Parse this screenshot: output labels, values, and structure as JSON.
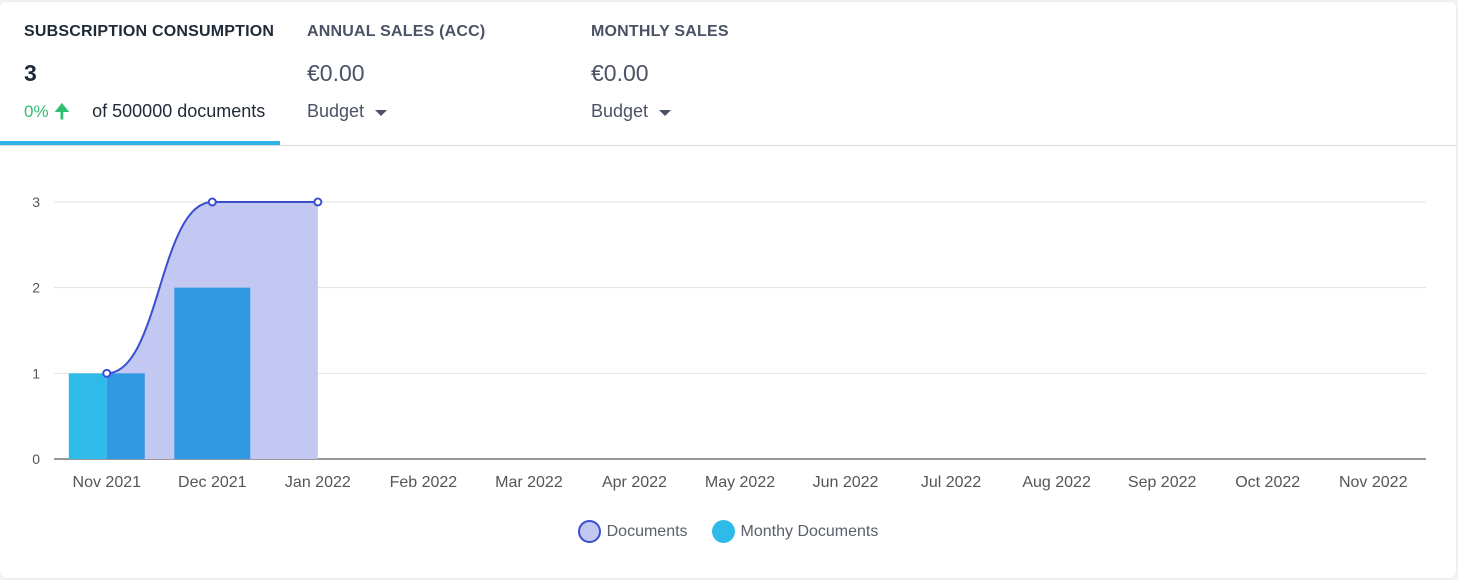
{
  "stats": {
    "consumption": {
      "title": "SUBSCRIPTION CONSUMPTION",
      "value": "3",
      "change_pct": "0%",
      "change_icon": "arrow-up-icon",
      "of_text": "of 500000 documents"
    },
    "annual": {
      "title": "ANNUAL SALES (ACC)",
      "value": "€0.00",
      "select": "Budget"
    },
    "monthly": {
      "title": "MONTHLY SALES",
      "value": "€0.00",
      "select": "Budget"
    }
  },
  "colors": {
    "accent": "#2eb4e6",
    "positive": "#2fbf71",
    "documents_line": "#3a4fd0",
    "documents_fill": "#c2c8f2",
    "monthly_bar_light": "#2fbbea",
    "monthly_bar_dark": "#3198e3"
  },
  "chart_data": {
    "type": "bar",
    "categories": [
      "Nov 2021",
      "Dec 2021",
      "Jan 2022",
      "Feb 2022",
      "Mar 2022",
      "Apr 2022",
      "May 2022",
      "Jun 2022",
      "Jul 2022",
      "Aug 2022",
      "Sep 2022",
      "Oct 2022",
      "Nov 2022"
    ],
    "ylim": [
      0,
      3
    ],
    "yticks": [
      0,
      1,
      2,
      3
    ],
    "grid": true,
    "legend_position": "bottom",
    "series": [
      {
        "name": "Documents",
        "type": "area",
        "values": [
          1,
          3,
          3,
          null,
          null,
          null,
          null,
          null,
          null,
          null,
          null,
          null,
          null
        ]
      },
      {
        "name": "Monthy Documents",
        "type": "bar",
        "values": [
          1,
          2,
          0,
          0,
          0,
          0,
          0,
          0,
          0,
          0,
          0,
          0,
          0
        ]
      }
    ]
  }
}
